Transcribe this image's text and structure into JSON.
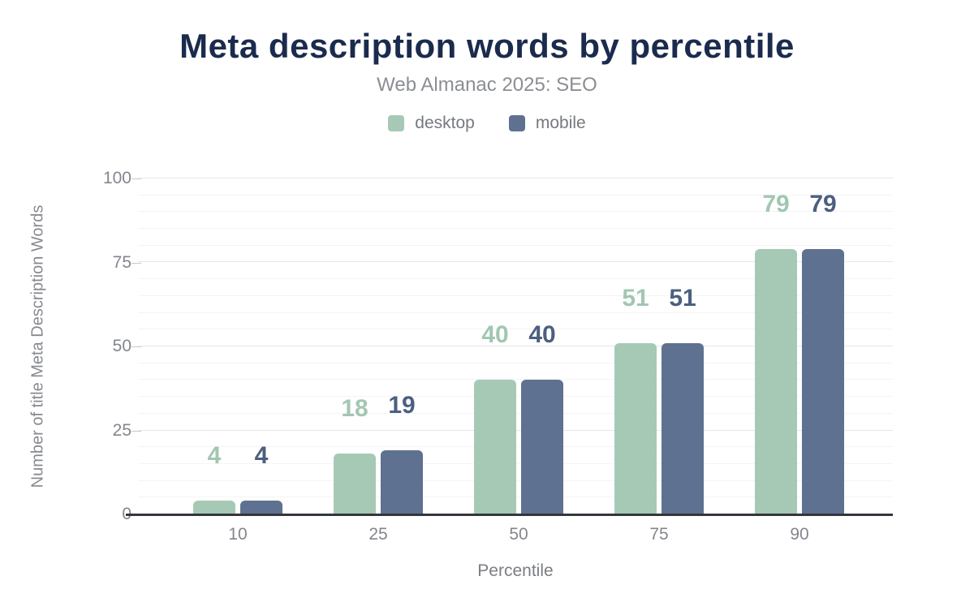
{
  "header": {
    "title": "Meta description words by percentile",
    "subtitle": "Web Almanac 2025: SEO"
  },
  "colors": {
    "title": "#1b2b4d",
    "subtitle": "#8b8e93",
    "axis_line": "#33363c",
    "grid_major": "#e7e7eb",
    "grid_minor": "#f4f4f6",
    "tick_label": "#83868d"
  },
  "legend": {
    "items": [
      {
        "label": "desktop",
        "color": "#a6c9b5"
      },
      {
        "label": "mobile",
        "color": "#5f7190"
      }
    ]
  },
  "chart_data": {
    "type": "bar",
    "title": "Meta description words by percentile",
    "subtitle": "Web Almanac 2025: SEO",
    "categories": [
      "10",
      "25",
      "50",
      "75",
      "90"
    ],
    "series": [
      {
        "name": "desktop",
        "color": "#a6c9b5",
        "label_color": "#a2c7b1",
        "values": [
          4,
          18,
          40,
          51,
          79
        ]
      },
      {
        "name": "mobile",
        "color": "#5f7190",
        "label_color": "#4c5f80",
        "values": [
          4,
          19,
          40,
          51,
          79
        ]
      }
    ],
    "xlabel": "Percentile",
    "ylabel": "Number of title Meta Description Words",
    "ylim": [
      0,
      100
    ],
    "yticks": [
      0,
      25,
      50,
      75,
      100
    ],
    "minor_grid_step": 5,
    "grid": "on",
    "legend_position": "top"
  }
}
